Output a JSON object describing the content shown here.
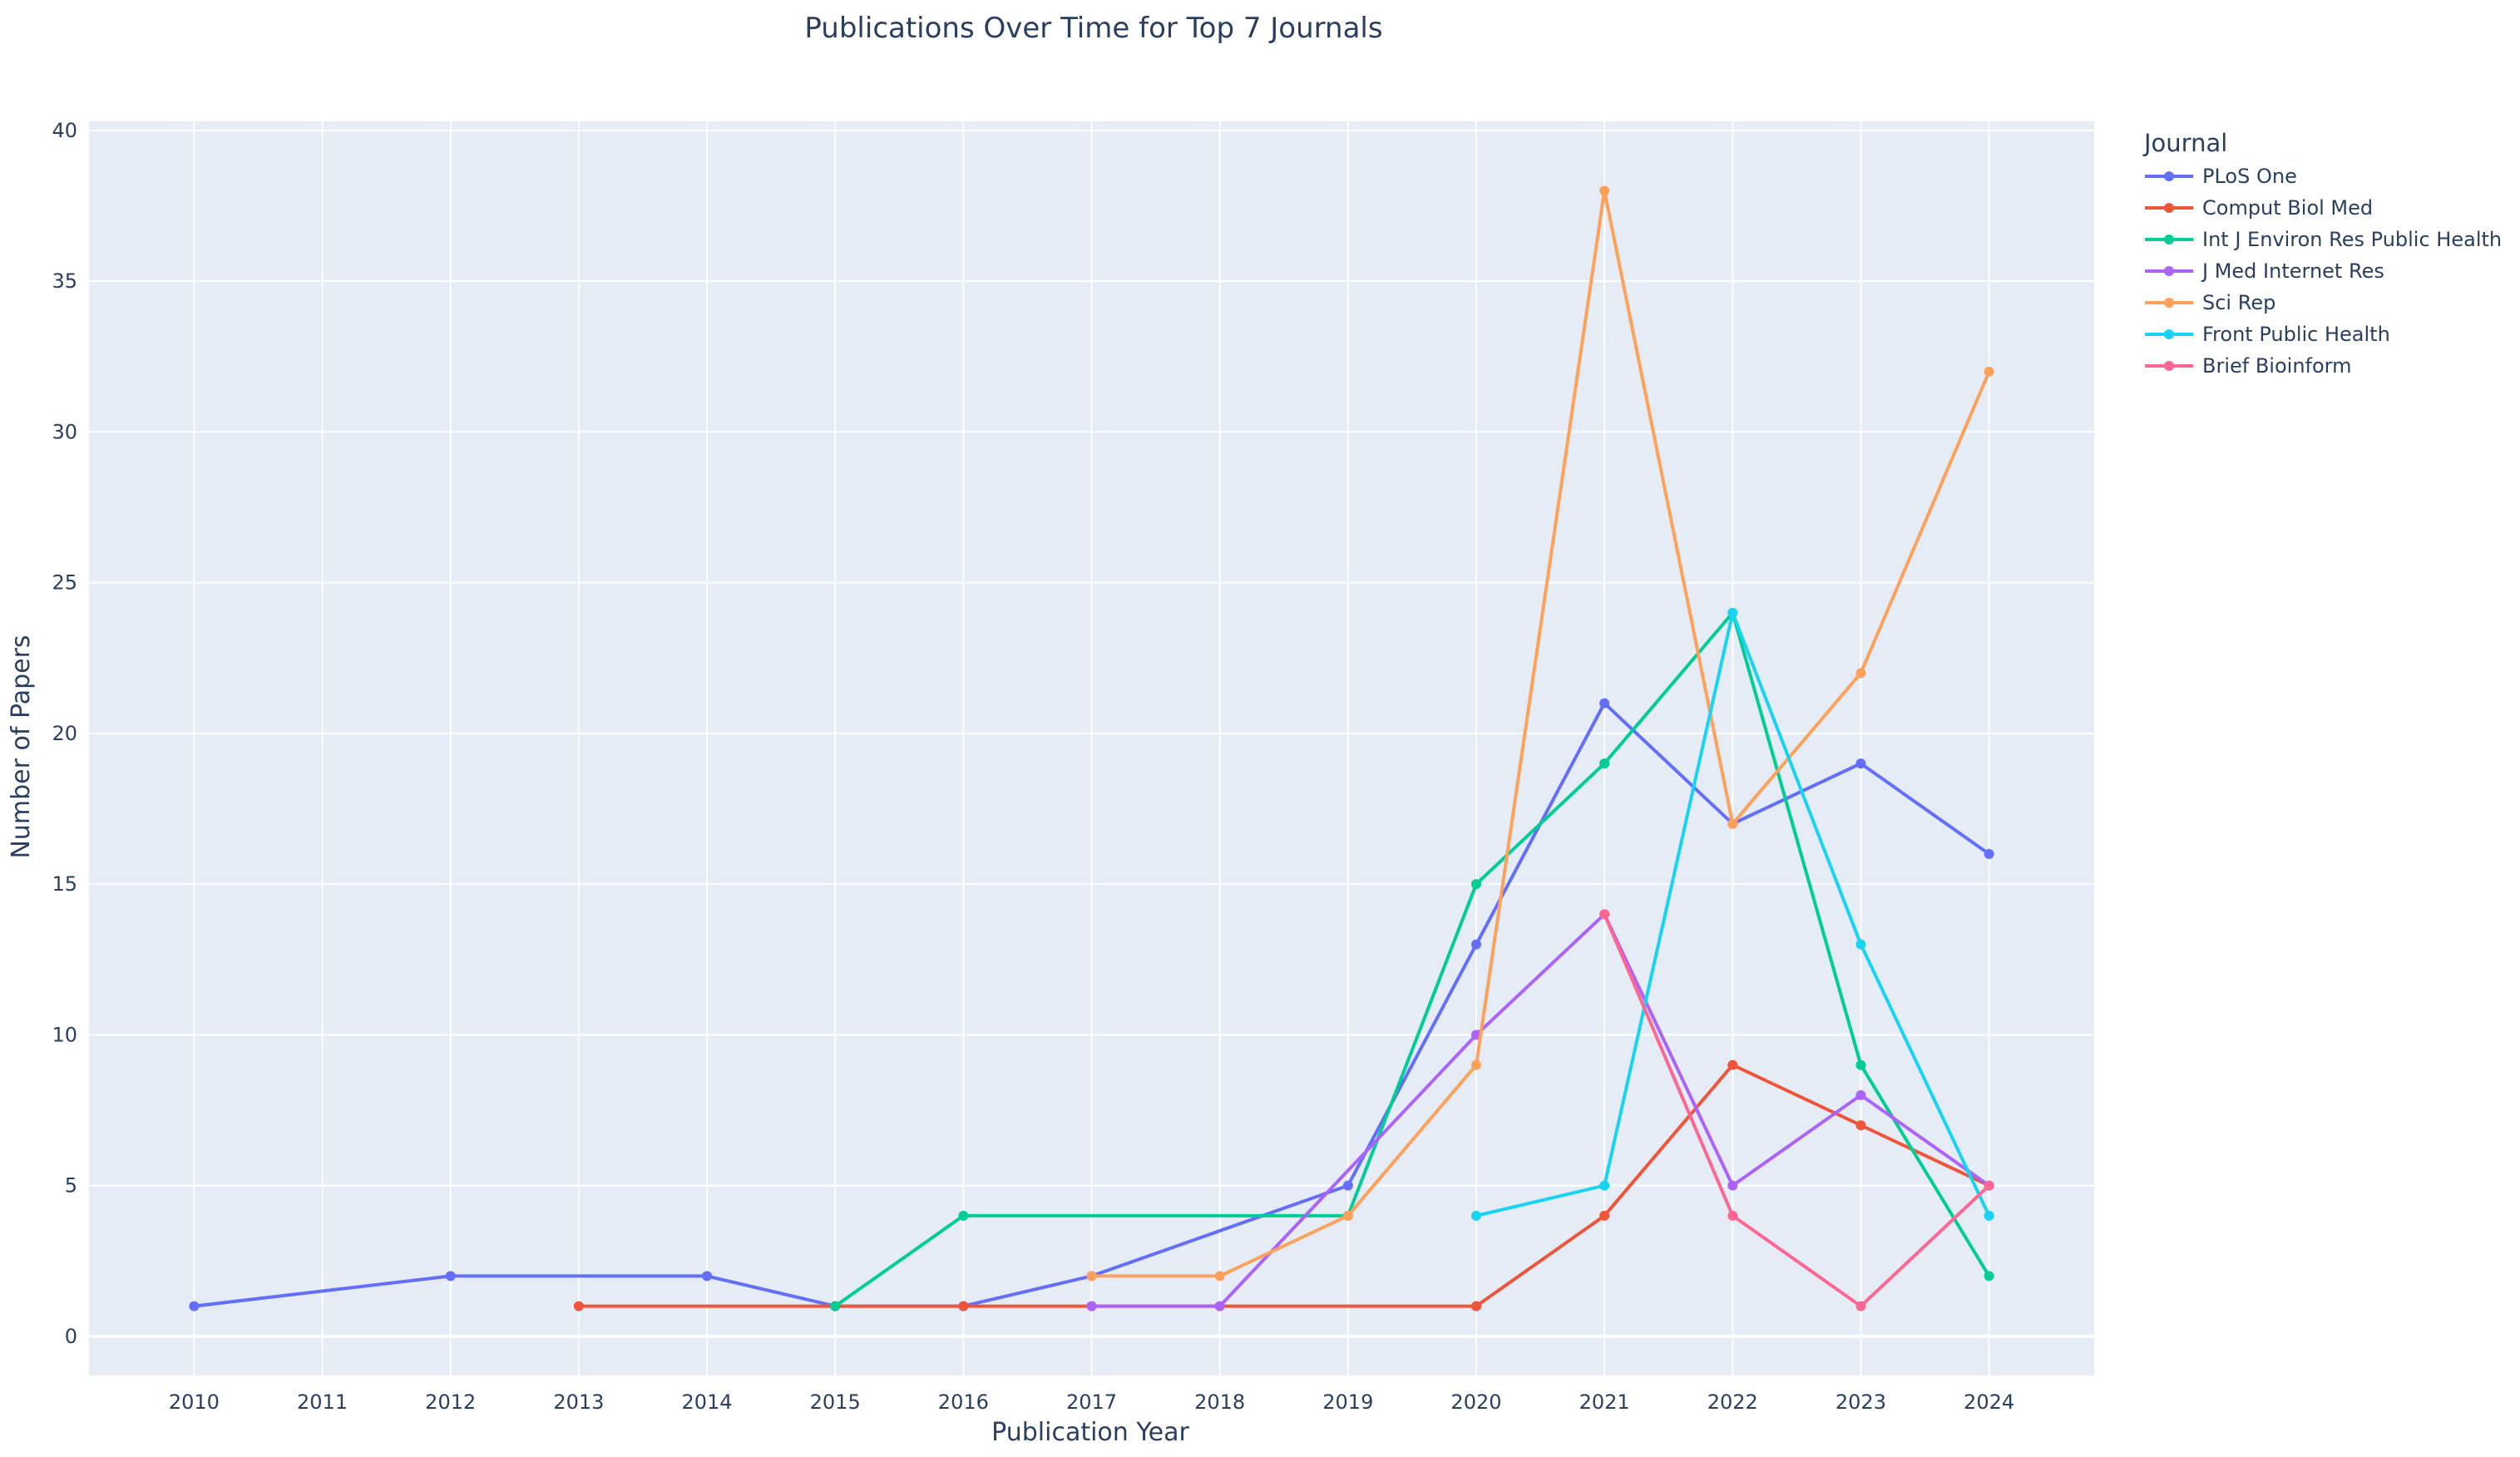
{
  "chart_data": {
    "type": "line",
    "title": "Publications Over Time for Top 7 Journals",
    "xlabel": "Publication Year",
    "ylabel": "Number of Papers",
    "xlim": [
      2009.18,
      2024.82
    ],
    "ylim": [
      -1.3,
      40.3
    ],
    "x_ticks": [
      2010,
      2011,
      2012,
      2013,
      2014,
      2015,
      2016,
      2017,
      2018,
      2019,
      2020,
      2021,
      2022,
      2023,
      2024
    ],
    "y_ticks": [
      0,
      5,
      10,
      15,
      20,
      25,
      30,
      35,
      40
    ],
    "grid": true,
    "legend_title": "Journal",
    "legend_position": "right",
    "series": [
      {
        "name": "PLoS One",
        "color": "#636efa",
        "x": [
          2010,
          2012,
          2014,
          2015,
          2016,
          2017,
          2019,
          2020,
          2021,
          2022,
          2023,
          2024
        ],
        "y": [
          1,
          2,
          2,
          1,
          1,
          2,
          5,
          13,
          21,
          17,
          19,
          16
        ]
      },
      {
        "name": "Comput Biol Med",
        "color": "#EF553B",
        "x": [
          2013,
          2015,
          2016,
          2017,
          2018,
          2020,
          2021,
          2022,
          2023,
          2024
        ],
        "y": [
          1,
          1,
          1,
          1,
          1,
          1,
          4,
          9,
          7,
          5
        ]
      },
      {
        "name": "Int J Environ Res Public Health",
        "color": "#00cc96",
        "x": [
          2015,
          2016,
          2019,
          2020,
          2021,
          2022,
          2023,
          2024
        ],
        "y": [
          1,
          4,
          4,
          15,
          19,
          24,
          9,
          2
        ]
      },
      {
        "name": "J Med Internet Res",
        "color": "#ab63fa",
        "x": [
          2017,
          2018,
          2020,
          2021,
          2022,
          2023,
          2024
        ],
        "y": [
          1,
          1,
          10,
          14,
          5,
          8,
          5
        ]
      },
      {
        "name": "Sci Rep",
        "color": "#FFA15A",
        "x": [
          2017,
          2018,
          2019,
          2020,
          2021,
          2022,
          2023,
          2024
        ],
        "y": [
          2,
          2,
          4,
          9,
          38,
          17,
          22,
          32
        ]
      },
      {
        "name": "Front Public Health",
        "color": "#19d3f3",
        "x": [
          2020,
          2021,
          2022,
          2023,
          2024
        ],
        "y": [
          4,
          5,
          24,
          13,
          4
        ]
      },
      {
        "name": "Brief Bioinform",
        "color": "#FF6692",
        "x": [
          2021,
          2022,
          2023,
          2024
        ],
        "y": [
          14,
          4,
          1,
          5
        ]
      }
    ]
  }
}
